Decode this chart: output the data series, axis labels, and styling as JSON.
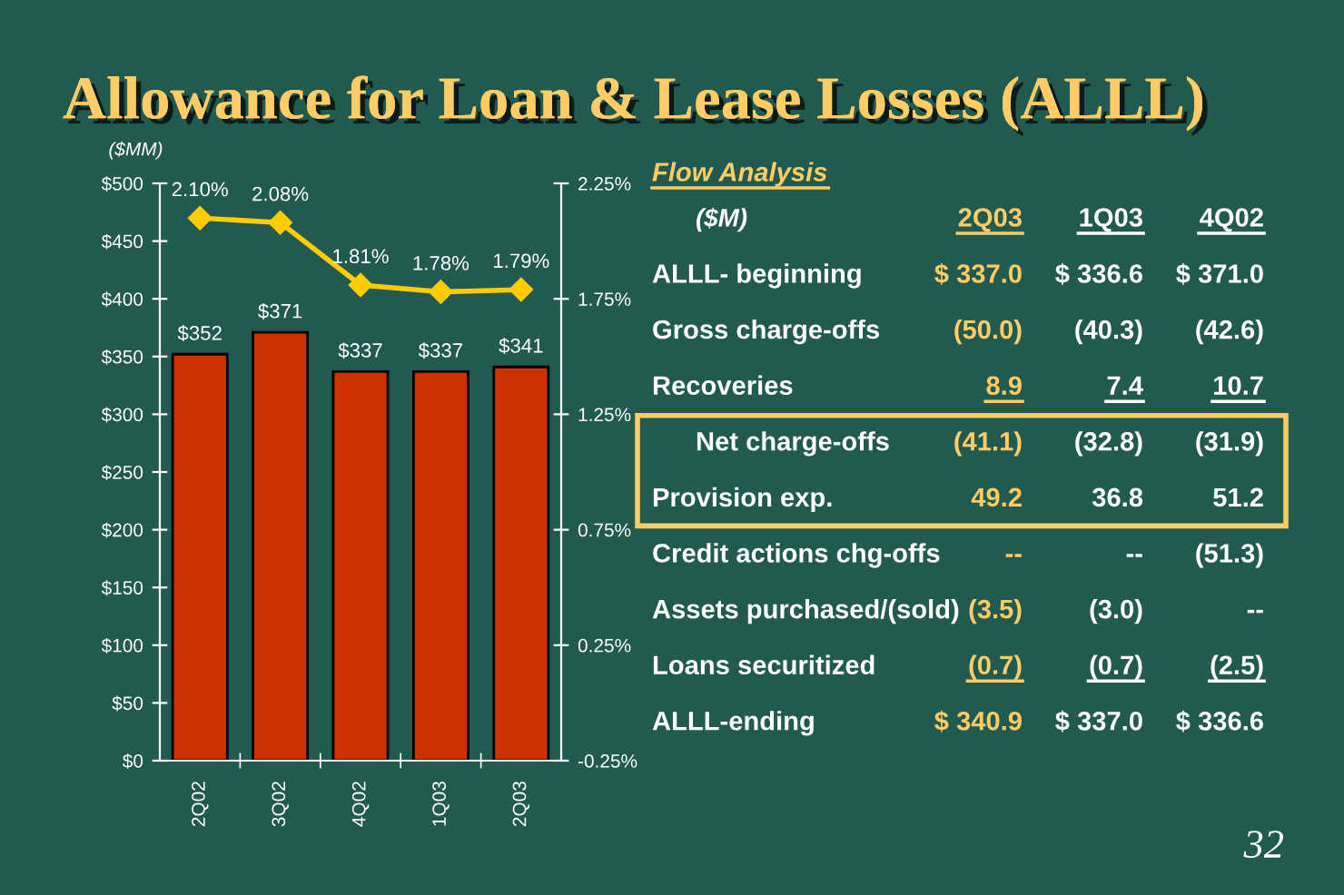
{
  "chart_data": [
    {
      "type": "bar",
      "title": "Allowance for Loan & Lease Losses (ALLL)",
      "ylabel": "($MM)",
      "categories": [
        "2Q02",
        "3Q02",
        "4Q02",
        "1Q03",
        "2Q03"
      ],
      "series": [
        {
          "type": "bar",
          "color": "#cc3300",
          "values": [
            352,
            371,
            337,
            337,
            341
          ],
          "value_labels": [
            "$352",
            "$371",
            "$337",
            "$337",
            "$341"
          ]
        },
        {
          "type": "line",
          "axis": "y2",
          "color": "#ffcc00",
          "values": [
            2.1,
            2.08,
            1.81,
            1.78,
            1.79
          ],
          "value_labels": [
            "2.10%",
            "2.08%",
            "1.81%",
            "1.78%",
            "1.79%"
          ]
        }
      ],
      "ylim": [
        0,
        500
      ],
      "yticks": [
        {
          "value": 0,
          "label": "$0"
        },
        {
          "value": 50,
          "label": "$50"
        },
        {
          "value": 100,
          "label": "$100"
        },
        {
          "value": 150,
          "label": "$150"
        },
        {
          "value": 200,
          "label": "$200"
        },
        {
          "value": 250,
          "label": "$250"
        },
        {
          "value": 300,
          "label": "$300"
        },
        {
          "value": 350,
          "label": "$350"
        },
        {
          "value": 400,
          "label": "$400"
        },
        {
          "value": 450,
          "label": "$450"
        },
        {
          "value": 500,
          "label": "$500"
        }
      ],
      "y2lim": [
        -0.25,
        2.25
      ],
      "y2ticks": [
        {
          "value": -0.25,
          "label": "-0.25%"
        },
        {
          "value": 0.25,
          "label": "0.25%"
        },
        {
          "value": 0.75,
          "label": "0.75%"
        },
        {
          "value": 1.25,
          "label": "1.25%"
        },
        {
          "value": 1.75,
          "label": "1.75%"
        },
        {
          "value": 2.25,
          "label": "2.25%"
        }
      ],
      "marker": "diamond"
    },
    {
      "type": "other",
      "title": "Flow Analysis",
      "subtitle": "($M)",
      "categories": [
        "2Q03",
        "1Q03",
        "4Q02"
      ],
      "y_categories": [
        "ALLL- beginning",
        "Gross charge-offs",
        "Recoveries",
        "Net charge-offs",
        "Provision exp.",
        "Credit actions chg-offs",
        "Assets purchased/(sold)",
        "Loans securitized",
        "ALLL-ending"
      ],
      "cell_labels": [
        [
          "$ 337.0",
          "$ 336.6",
          "$ 371.0"
        ],
        [
          "(50.0)",
          "(40.3)",
          "(42.6)"
        ],
        [
          "8.9",
          "7.4",
          "10.7"
        ],
        [
          "(41.1)",
          "(32.8)",
          "(31.9)"
        ],
        [
          "49.2",
          "36.8",
          "51.2"
        ],
        [
          "--",
          "--",
          "(51.3)"
        ],
        [
          "(3.5)",
          "(3.0)",
          "--"
        ],
        [
          "(0.7)",
          "(0.7)",
          "(2.5)"
        ],
        [
          "$ 340.9",
          "$ 337.0",
          "$ 336.6"
        ]
      ],
      "colors": [
        "#ffcc66",
        "#ffffff",
        "#ffffff"
      ],
      "annotations": [
        "32"
      ]
    }
  ]
}
